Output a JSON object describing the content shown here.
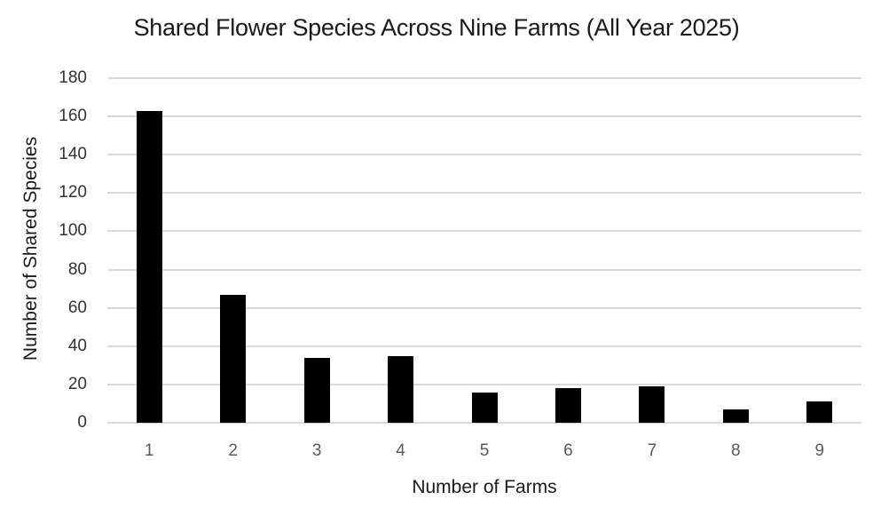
{
  "chart_data": {
    "type": "bar",
    "title": "Shared Flower Species Across Nine Farms (All Year 2025)",
    "xlabel": "Number of Farms",
    "ylabel": "Number of Shared Species",
    "categories": [
      "1",
      "2",
      "3",
      "4",
      "5",
      "6",
      "7",
      "8",
      "9"
    ],
    "values": [
      163,
      67,
      34,
      35,
      16,
      18,
      19,
      7,
      11
    ],
    "ylim": [
      0,
      180
    ],
    "yticks": [
      0,
      20,
      40,
      60,
      80,
      100,
      120,
      140,
      160,
      180
    ],
    "grid": true,
    "legend": null,
    "bar_color": "#000000",
    "grid_color": "#d9d9d9"
  }
}
